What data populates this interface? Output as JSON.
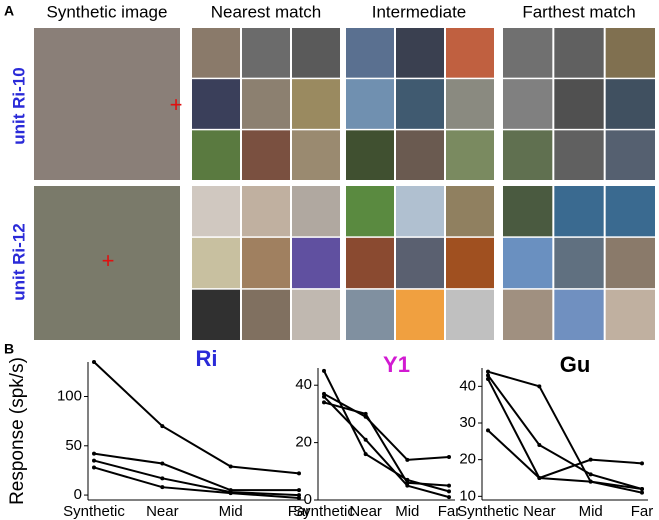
{
  "panel_a": {
    "letter": "A",
    "columns": [
      "Synthetic image",
      "Nearest match",
      "Intermediate",
      "Farthest match"
    ],
    "rows": [
      "unit Ri-10",
      "unit Ri-12"
    ]
  },
  "panel_b": {
    "letter": "B"
  },
  "chart_data": [
    {
      "type": "line",
      "title": "Ri",
      "title_color": "#2a2ad8",
      "ylabel": "Response (spk/s)",
      "categories": [
        "Synthetic",
        "Near",
        "Mid",
        "Far"
      ],
      "ylim": [
        -5,
        135
      ],
      "yticks": [
        0,
        50,
        100
      ],
      "color": "#000000",
      "series": [
        {
          "values": [
            135,
            70,
            29,
            22
          ]
        },
        {
          "values": [
            42,
            32,
            5,
            5
          ]
        },
        {
          "values": [
            35,
            17,
            3,
            0
          ]
        },
        {
          "values": [
            28,
            8,
            2,
            -3
          ]
        }
      ]
    },
    {
      "type": "line",
      "title": "Y1",
      "title_color": "#d21ad2",
      "categories": [
        "Synthetic",
        "Near",
        "Mid",
        "Far"
      ],
      "ylim": [
        0,
        46
      ],
      "yticks": [
        0,
        20,
        40
      ],
      "color": "#000000",
      "series": [
        {
          "values": [
            45,
            16,
            7,
            3
          ]
        },
        {
          "values": [
            37,
            29,
            14,
            15
          ]
        },
        {
          "values": [
            34,
            30,
            6,
            5
          ]
        },
        {
          "values": [
            36,
            21,
            5,
            1
          ]
        }
      ]
    },
    {
      "type": "line",
      "title": "Gu",
      "title_color": "#000000",
      "categories": [
        "Synthetic",
        "Near",
        "Mid",
        "Far"
      ],
      "ylim": [
        9,
        45
      ],
      "yticks": [
        10,
        20,
        30,
        40
      ],
      "color": "#000000",
      "series": [
        {
          "values": [
            44,
            40,
            14,
            11
          ]
        },
        {
          "values": [
            43,
            24,
            16,
            12
          ]
        },
        {
          "values": [
            42,
            15,
            20,
            19
          ]
        },
        {
          "values": [
            28,
            15,
            14,
            12
          ]
        }
      ]
    }
  ]
}
